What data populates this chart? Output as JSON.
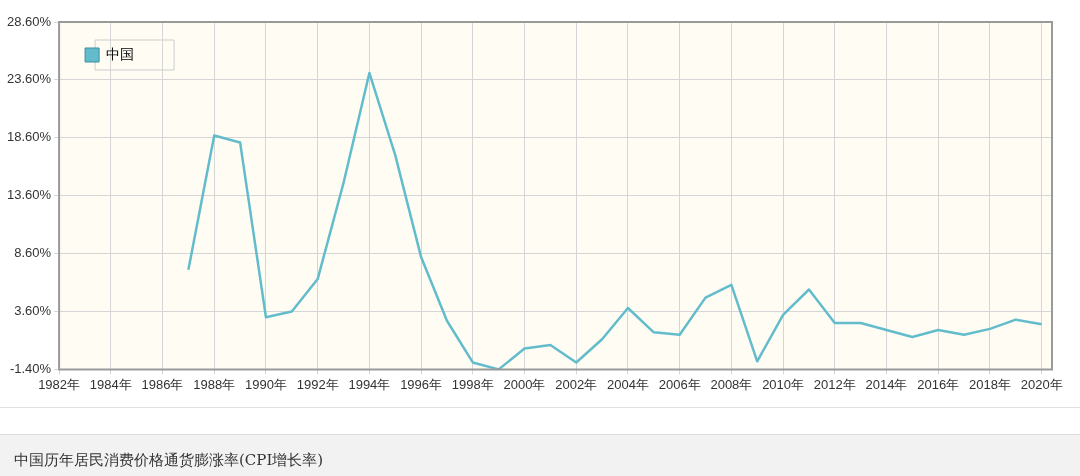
{
  "chart_data": {
    "type": "line",
    "title": "中国历年居民消费价格通货膨涨率(CPI增长率)",
    "x": [
      1987,
      1988,
      1989,
      1990,
      1991,
      1992,
      1993,
      1994,
      1995,
      1996,
      1997,
      1998,
      1999,
      2000,
      2001,
      2002,
      2003,
      2004,
      2005,
      2006,
      2007,
      2008,
      2009,
      2010,
      2011,
      2012,
      2013,
      2014,
      2015,
      2016,
      2017,
      2018,
      2019,
      2020
    ],
    "series": [
      {
        "name": "中国",
        "color": "#62bccb",
        "values": [
          7.2,
          18.8,
          18.2,
          3.1,
          3.6,
          6.4,
          14.7,
          24.2,
          17.1,
          8.3,
          2.8,
          -0.8,
          -1.4,
          0.4,
          0.7,
          -0.8,
          1.2,
          3.9,
          1.8,
          1.6,
          4.8,
          5.9,
          -0.7,
          3.3,
          5.5,
          2.6,
          2.6,
          2.0,
          1.4,
          2.0,
          1.6,
          2.1,
          2.9,
          2.5
        ]
      }
    ],
    "xlim": [
      1982,
      2020.4
    ],
    "xticks": [
      {
        "value": 1982,
        "label": "1982年"
      },
      {
        "value": 1984,
        "label": "1984年"
      },
      {
        "value": 1986,
        "label": "1986年"
      },
      {
        "value": 1988,
        "label": "1988年"
      },
      {
        "value": 1990,
        "label": "1990年"
      },
      {
        "value": 1992,
        "label": "1992年"
      },
      {
        "value": 1994,
        "label": "1994年"
      },
      {
        "value": 1996,
        "label": "1996年"
      },
      {
        "value": 1998,
        "label": "1998年"
      },
      {
        "value": 2000,
        "label": "2000年"
      },
      {
        "value": 2002,
        "label": "2002年"
      },
      {
        "value": 2004,
        "label": "2004年"
      },
      {
        "value": 2006,
        "label": "2006年"
      },
      {
        "value": 2008,
        "label": "2008年"
      },
      {
        "value": 2010,
        "label": "2010年"
      },
      {
        "value": 2012,
        "label": "2012年"
      },
      {
        "value": 2014,
        "label": "2014年"
      },
      {
        "value": 2016,
        "label": "2016年"
      },
      {
        "value": 2018,
        "label": "2018年"
      },
      {
        "value": 2020,
        "label": "2020年"
      }
    ],
    "ylim": [
      -1.4,
      28.6
    ],
    "yticks": [
      {
        "value": -1.4,
        "label": "-1.40%"
      },
      {
        "value": 3.6,
        "label": "3.60%"
      },
      {
        "value": 8.6,
        "label": "8.60%"
      },
      {
        "value": 13.6,
        "label": "13.60%"
      },
      {
        "value": 18.6,
        "label": "18.60%"
      },
      {
        "value": 23.6,
        "label": "23.60%"
      },
      {
        "value": 28.6,
        "label": "28.60%"
      }
    ],
    "grid": true,
    "legend": "top left",
    "marker": "none",
    "line_style": "solid"
  }
}
